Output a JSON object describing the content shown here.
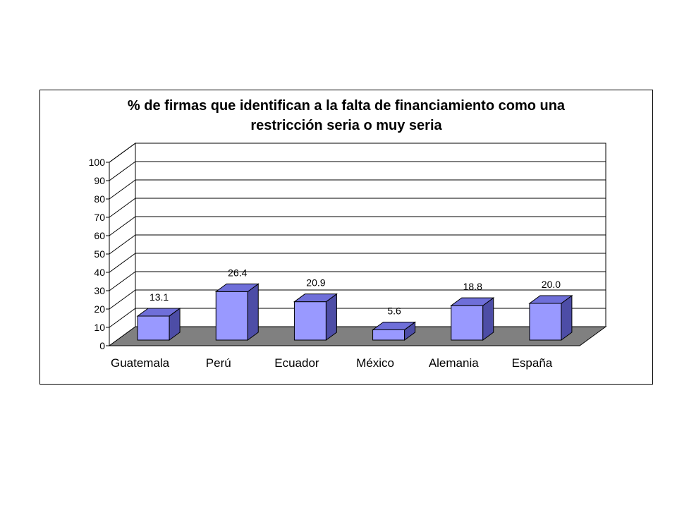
{
  "chart_data": {
    "type": "bar",
    "title_lines": [
      "% de firmas que identifican a la falta de financiamiento como una",
      "restricción seria o muy seria"
    ],
    "categories": [
      "Guatemala",
      "Perú",
      "Ecuador",
      "México",
      "Alemania",
      "España"
    ],
    "values": [
      13.1,
      26.4,
      20.9,
      5.6,
      18.8,
      20.0
    ],
    "value_labels": [
      "13.1",
      "26.4",
      "20.9",
      "5.6",
      "18.8",
      "20.0"
    ],
    "y_ticks": [
      "0",
      "10",
      "20",
      "30",
      "40",
      "50",
      "60",
      "70",
      "80",
      "90",
      "100"
    ],
    "ylim": [
      0,
      100
    ],
    "grid": true,
    "style_3d": true,
    "colors": {
      "bar_front": "#9999ff",
      "bar_top": "#6f6fd9",
      "bar_side": "#4d4da6",
      "floor": "#808080",
      "wall": "#ffffff",
      "gridline": "#000000"
    }
  }
}
